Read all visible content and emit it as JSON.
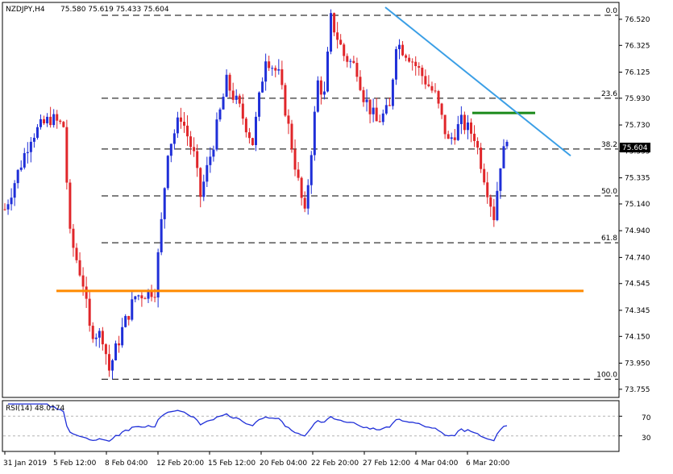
{
  "header": {
    "symbol": "NZDJPY,H4",
    "ohlc": "75.580 75.619 75.433 75.604"
  },
  "rsi": {
    "label": "RSI(14) 48.0174",
    "levels": [
      "70",
      "30"
    ],
    "level_values": [
      70,
      30
    ],
    "line_color": "#1f2fd8",
    "level_color": "#b4b4b4"
  },
  "chart_data": {
    "type": "candlestick",
    "x_tick_labels": [
      "31 Jan 2019",
      "5 Feb 12:00",
      "8 Feb 04:00",
      "12 Feb 20:00",
      "15 Feb 12:00",
      "20 Feb 04:00",
      "22 Feb 20:00",
      "27 Feb 12:00",
      "4 Mar 04:00",
      "6 Mar 20:00"
    ],
    "y_tick_labels": [
      "76.520",
      "76.325",
      "76.125",
      "75.930",
      "75.730",
      "75.535",
      "75.335",
      "75.140",
      "74.940",
      "74.740",
      "74.545",
      "74.345",
      "74.150",
      "73.950",
      "73.755"
    ],
    "y_tick_values": [
      76.52,
      76.325,
      76.125,
      75.93,
      75.73,
      75.535,
      75.335,
      75.14,
      74.94,
      74.74,
      74.545,
      74.345,
      74.15,
      73.95,
      73.755
    ],
    "ylim": [
      73.7,
      76.64
    ],
    "current_price": "75.604",
    "current_price_value": 75.604,
    "bull_color": "#1f2fd8",
    "bear_color": "#e0262a",
    "fibonacci": {
      "labels": [
        "0.0",
        "23.6",
        "38.2",
        "50.0",
        "61.8",
        "100.0"
      ],
      "values": [
        76.55,
        75.93,
        75.55,
        75.2,
        74.85,
        73.83
      ]
    },
    "support_level": {
      "value": 74.49,
      "color": "#ff8a00"
    },
    "resistance_level": {
      "value": 75.82,
      "color": "#1a8a1a"
    },
    "trendline": {
      "from": [
        76.61
      ],
      "to": [
        75.5
      ],
      "color": "#3b9fe6"
    },
    "candles_summary": {
      "start_price": 75.1,
      "low": 73.83,
      "high": 76.55,
      "last_close": 75.604
    }
  }
}
